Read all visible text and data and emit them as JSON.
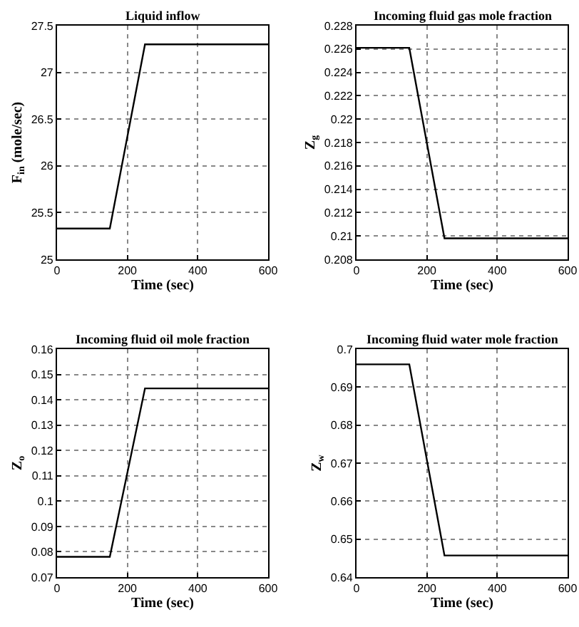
{
  "chart_data": [
    {
      "type": "line",
      "title": "Liquid inflow",
      "xlabel": "Time (sec)",
      "ylabel": "F$_{in}$ (mole/sec)",
      "x": [
        0,
        150,
        250,
        600
      ],
      "values": [
        25.33,
        25.33,
        27.3,
        27.3
      ],
      "color": "#000000",
      "xlim": [
        0,
        600
      ],
      "xticks": [
        0,
        200,
        400,
        600
      ],
      "ylim": [
        25,
        27.5
      ],
      "yticks": [
        25,
        25.5,
        26,
        26.5,
        27,
        27.5
      ],
      "grid": true
    },
    {
      "type": "line",
      "title": "Incoming fluid gas mole fraction",
      "xlabel": "Time (sec)",
      "ylabel": "Z$_{g}$",
      "x": [
        0,
        150,
        250,
        600
      ],
      "values": [
        0.2261,
        0.2261,
        0.2098,
        0.2098
      ],
      "color": "#000000",
      "xlim": [
        0,
        600
      ],
      "xticks": [
        0,
        200,
        400,
        600
      ],
      "ylim": [
        0.208,
        0.228
      ],
      "yticks": [
        0.208,
        0.21,
        0.212,
        0.214,
        0.216,
        0.218,
        0.22,
        0.222,
        0.224,
        0.226,
        0.228
      ],
      "grid": true
    },
    {
      "type": "line",
      "title": "Incoming fluid oil mole fraction",
      "xlabel": "Time (sec)",
      "ylabel": "Z$_{o}$",
      "x": [
        0,
        150,
        250,
        600
      ],
      "values": [
        0.078,
        0.078,
        0.1445,
        0.1445
      ],
      "color": "#000000",
      "xlim": [
        0,
        600
      ],
      "xticks": [
        0,
        200,
        400,
        600
      ],
      "ylim": [
        0.07,
        0.16
      ],
      "yticks": [
        0.07,
        0.08,
        0.09,
        0.1,
        0.11,
        0.12,
        0.13,
        0.14,
        0.15,
        0.16
      ],
      "grid": true
    },
    {
      "type": "line",
      "title": "Incoming fluid water mole fraction",
      "xlabel": "Time (sec)",
      "ylabel": "Z$_{w}$",
      "x": [
        0,
        150,
        250,
        600
      ],
      "values": [
        0.696,
        0.696,
        0.6457,
        0.6457
      ],
      "color": "#000000",
      "xlim": [
        0,
        600
      ],
      "xticks": [
        0,
        200,
        400,
        600
      ],
      "ylim": [
        0.64,
        0.7
      ],
      "yticks": [
        0.64,
        0.65,
        0.66,
        0.67,
        0.68,
        0.69,
        0.7
      ],
      "grid": true
    }
  ]
}
